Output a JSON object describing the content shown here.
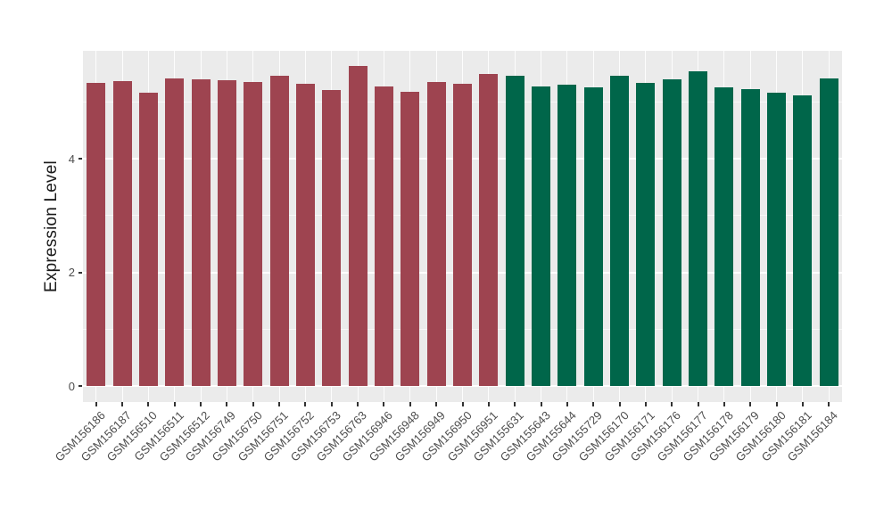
{
  "chart_data": {
    "type": "bar",
    "title": "",
    "xlabel": "",
    "ylabel": "Expression Level",
    "ylim": [
      0,
      5.9
    ],
    "y_major_ticks": [
      0,
      2,
      4
    ],
    "y_minor_gridlines": [
      1,
      3,
      5
    ],
    "grid": "on",
    "legend_position": "none",
    "x_tick_label_angle": 45,
    "categories": [
      "GSM156186",
      "GSM156187",
      "GSM156510",
      "GSM156511",
      "GSM156512",
      "GSM156749",
      "GSM156750",
      "GSM156751",
      "GSM156752",
      "GSM156753",
      "GSM156763",
      "GSM156946",
      "GSM156948",
      "GSM156949",
      "GSM156950",
      "GSM156951",
      "GSM155631",
      "GSM155643",
      "GSM155644",
      "GSM155729",
      "GSM156170",
      "GSM156171",
      "GSM156176",
      "GSM156177",
      "GSM156178",
      "GSM156179",
      "GSM156180",
      "GSM156181",
      "GSM156184"
    ],
    "values": [
      5.33,
      5.37,
      5.17,
      5.41,
      5.4,
      5.38,
      5.36,
      5.46,
      5.32,
      5.21,
      5.63,
      5.28,
      5.18,
      5.35,
      5.32,
      5.49,
      5.47,
      5.27,
      5.31,
      5.26,
      5.46,
      5.34,
      5.4,
      5.54,
      5.26,
      5.22,
      5.17,
      5.12,
      5.41
    ],
    "groups": [
      {
        "name": "maroon-group",
        "color": "#9E4450",
        "start_index": 0,
        "count": 16
      },
      {
        "name": "green-group",
        "color": "#00664A",
        "start_index": 16,
        "count": 13
      }
    ],
    "colors": {
      "panel_background": "#EBEBEB",
      "gridline": "#FFFFFF",
      "axis_text": "#4D4D4D",
      "axis_title": "#1A1A1A",
      "tick_mark": "#333333",
      "figure_background": "#FFFFFF"
    }
  }
}
